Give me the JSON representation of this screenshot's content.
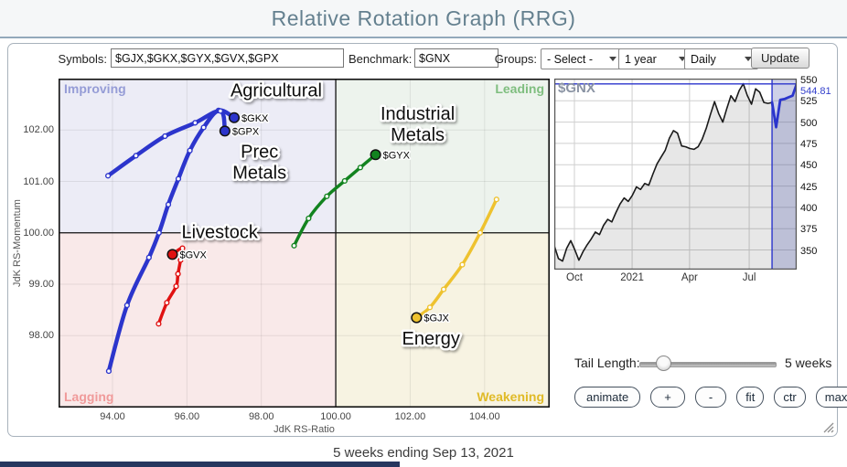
{
  "header": {
    "title": "Relative Rotation Graph (RRG)"
  },
  "controls": {
    "symbols_label": "Symbols:",
    "symbols_value": "$GJX,$GKX,$GYX,$GVX,$GPX",
    "benchmark_label": "Benchmark:",
    "benchmark_value": "$GNX",
    "groups_label": "Groups:",
    "groups_selected": "- Select -",
    "period_selected": "1 year",
    "frequency_selected": "Daily",
    "update_label": "Update"
  },
  "tail": {
    "label": "Tail Length:",
    "value": "5 weeks",
    "fraction": 0.17
  },
  "toolbar": {
    "buttons": [
      {
        "label": "animate",
        "name": "animate-button"
      },
      {
        "label": "+",
        "name": "zoom-in-button"
      },
      {
        "label": "-",
        "name": "zoom-out-button"
      },
      {
        "label": "fit",
        "name": "fit-button"
      },
      {
        "label": "ctr",
        "name": "center-button"
      },
      {
        "label": "max",
        "name": "maximize-button"
      }
    ]
  },
  "footer": {
    "caption": "5 weeks ending Sep 13, 2021"
  },
  "chart_data": [
    {
      "type": "scatter",
      "name": "rrg-rotation-graph",
      "xlabel": "JdK RS-Ratio",
      "ylabel": "JdK RS-Momentum",
      "xlim": [
        92.55,
        105.75
      ],
      "ylim": [
        96.6,
        103.0
      ],
      "xticks": [
        94,
        96,
        98,
        100,
        102,
        104
      ],
      "yticks": [
        98,
        99,
        100,
        101,
        102
      ],
      "center": [
        100,
        100
      ],
      "quadrants": [
        {
          "name": "Improving",
          "corner": "top-left",
          "bg": "#ececf6",
          "label_color": "#959cd6"
        },
        {
          "name": "Leading",
          "corner": "top-right",
          "bg": "#edf3ed",
          "label_color": "#7fbe7f"
        },
        {
          "name": "Lagging",
          "corner": "bottom-left",
          "bg": "#f9e9e9",
          "label_color": "#f09a9a"
        },
        {
          "name": "Weakening",
          "corner": "bottom-right",
          "bg": "#f7f3e2",
          "label_color": "#e0ba27"
        }
      ],
      "series": [
        {
          "symbol": "$GKX",
          "sector": "Agricultural",
          "color": "#2c35cc",
          "width": 4.5,
          "points": [
            [
              93.9,
              97.31
            ],
            [
              94.39,
              98.59
            ],
            [
              94.98,
              99.52
            ],
            [
              95.25,
              100.0
            ],
            [
              95.5,
              100.55
            ],
            [
              95.77,
              101.05
            ],
            [
              96.08,
              101.6
            ],
            [
              96.45,
              102.05
            ],
            [
              96.85,
              102.38
            ],
            [
              97.27,
              102.24
            ]
          ]
        },
        {
          "symbol": "$GPX",
          "sector": "Prec Metals",
          "color": "#2c35cc",
          "width": 4.5,
          "points": [
            [
              93.88,
              101.11
            ],
            [
              94.63,
              101.5
            ],
            [
              95.41,
              101.88
            ],
            [
              96.22,
              102.14
            ],
            [
              96.9,
              102.37
            ],
            [
              97.02,
              101.98
            ]
          ]
        },
        {
          "symbol": "$GYX",
          "sector": "Industrial Metals",
          "color": "#12831f",
          "width": 3.5,
          "points": [
            [
              98.88,
              99.75
            ],
            [
              99.27,
              100.28
            ],
            [
              99.76,
              100.71
            ],
            [
              100.24,
              101.01
            ],
            [
              100.66,
              101.27
            ],
            [
              101.07,
              101.52
            ]
          ]
        },
        {
          "symbol": "$GVX",
          "sector": "Livestock",
          "color": "#e01111",
          "width": 3.5,
          "points": [
            [
              95.24,
              98.23
            ],
            [
              95.46,
              98.64
            ],
            [
              95.71,
              98.96
            ],
            [
              95.76,
              99.2
            ],
            [
              95.83,
              99.47
            ],
            [
              95.88,
              99.7
            ],
            [
              95.61,
              99.58
            ]
          ]
        },
        {
          "symbol": "$GJX",
          "sector": "Energy",
          "color": "#eec22f",
          "width": 3.5,
          "points": [
            [
              104.32,
              100.65
            ],
            [
              103.88,
              100.0
            ],
            [
              103.4,
              99.38
            ],
            [
              102.9,
              98.9
            ],
            [
              102.53,
              98.55
            ],
            [
              102.17,
              98.35
            ]
          ]
        }
      ],
      "sector_labels": [
        {
          "lines": [
            "Agricultural"
          ],
          "x": 98.4,
          "y": 102.78
        },
        {
          "lines": [
            "Prec",
            "Metals"
          ],
          "x": 97.95,
          "y": 101.38
        },
        {
          "lines": [
            "Livestock"
          ],
          "x": 96.88,
          "y": 100.02
        },
        {
          "lines": [
            "Industrial",
            "Metals"
          ],
          "x": 102.2,
          "y": 102.12
        },
        {
          "lines": [
            "Energy"
          ],
          "x": 102.56,
          "y": 97.95
        }
      ]
    },
    {
      "type": "area",
      "name": "benchmark-price-chart",
      "symbol": "$GNX",
      "last_price_label": "544.81",
      "last_price_value": 544.81,
      "ylim": [
        327,
        551
      ],
      "yticks": [
        350,
        375,
        400,
        425,
        450,
        475,
        500,
        525,
        550
      ],
      "xlabels": [
        {
          "text": "Oct",
          "f": 0.083
        },
        {
          "text": "2021",
          "f": 0.321
        },
        {
          "text": "Apr",
          "f": 0.558
        },
        {
          "text": "Jul",
          "f": 0.804
        }
      ],
      "values": [
        355,
        340,
        337,
        352,
        361,
        350,
        338,
        348,
        356,
        363,
        371,
        368,
        379,
        386,
        383,
        394,
        404,
        411,
        407,
        414,
        424,
        421,
        428,
        426,
        439,
        451,
        459,
        467,
        481,
        490,
        487,
        472,
        471,
        469,
        468,
        471,
        480,
        493,
        509,
        524,
        510,
        500,
        516,
        531,
        524,
        537,
        545,
        531,
        521,
        539,
        535,
        523,
        522,
        523,
        494,
        526,
        527,
        529,
        531,
        544.81
      ],
      "highlight_start": 53,
      "line_color": "#1a1a1a",
      "fill_color": "rgba(60,60,60,0.12)",
      "highlight_color": "#2b35cc",
      "highlight_bg": "rgba(92,102,178,0.30)"
    }
  ]
}
